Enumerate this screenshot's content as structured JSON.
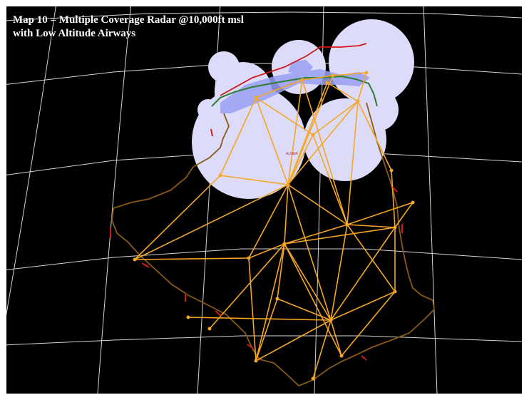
{
  "map": {
    "title_line1": "Map 10 = Multiple Coverage Radar @10,000ft msl",
    "title_line2": "with Low Altitude Airways",
    "label_algiers": "ALGER",
    "colors": {
      "background": "#000000",
      "graticule": "#d4d4d4",
      "radar_coverage": "#dcdcfa",
      "sea": "#9aa0f5",
      "airways": "#f5a623",
      "border": "#8a5a14",
      "fir_boundary": "#d11a1a",
      "coastline": "#2e7d32"
    }
  }
}
